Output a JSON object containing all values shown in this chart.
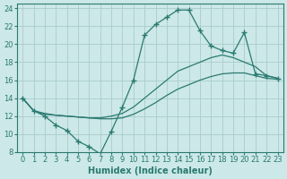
{
  "xlabel": "Humidex (Indice chaleur)",
  "xlim": [
    -0.5,
    23.5
  ],
  "ylim": [
    8,
    24.5
  ],
  "xticks": [
    0,
    1,
    2,
    3,
    4,
    5,
    6,
    7,
    8,
    9,
    10,
    11,
    12,
    13,
    14,
    15,
    16,
    17,
    18,
    19,
    20,
    21,
    22,
    23
  ],
  "yticks": [
    8,
    10,
    12,
    14,
    16,
    18,
    20,
    22,
    24
  ],
  "background_color": "#cce8e8",
  "grid_color": "#aacccc",
  "line_color": "#2a7a70",
  "line1_x": [
    0,
    1,
    2,
    3,
    4,
    5,
    6,
    7,
    8,
    9,
    10,
    11,
    12,
    13,
    14,
    15,
    16,
    17,
    18,
    19,
    20,
    21,
    22,
    23
  ],
  "line1_y": [
    14.0,
    12.6,
    12.0,
    11.0,
    10.4,
    9.2,
    8.6,
    7.8,
    10.3,
    13.0,
    16.0,
    21.0,
    22.2,
    23.0,
    23.8,
    23.8,
    21.5,
    19.8,
    19.3,
    19.0,
    21.3,
    16.7,
    16.5,
    16.2
  ],
  "line2_x": [
    0,
    1,
    2,
    3,
    4,
    5,
    6,
    7,
    8,
    9,
    10,
    11,
    12,
    13,
    14,
    15,
    16,
    17,
    18,
    19,
    20,
    21,
    22,
    23
  ],
  "line2_y": [
    14.0,
    12.6,
    12.3,
    12.1,
    12.0,
    11.9,
    11.8,
    11.8,
    12.0,
    12.3,
    13.0,
    14.0,
    15.0,
    16.0,
    17.0,
    17.5,
    18.0,
    18.5,
    18.8,
    18.5,
    18.0,
    17.5,
    16.5,
    16.2
  ],
  "line3_x": [
    0,
    1,
    2,
    3,
    4,
    5,
    6,
    7,
    8,
    9,
    10,
    11,
    12,
    13,
    14,
    15,
    16,
    17,
    18,
    19,
    20,
    21,
    22,
    23
  ],
  "line3_y": [
    14.0,
    12.6,
    12.2,
    12.1,
    12.0,
    11.9,
    11.8,
    11.7,
    11.7,
    11.8,
    12.2,
    12.8,
    13.5,
    14.3,
    15.0,
    15.5,
    16.0,
    16.4,
    16.7,
    16.8,
    16.8,
    16.5,
    16.2,
    16.1
  ],
  "fontsize_label": 7,
  "fontsize_tick": 6
}
